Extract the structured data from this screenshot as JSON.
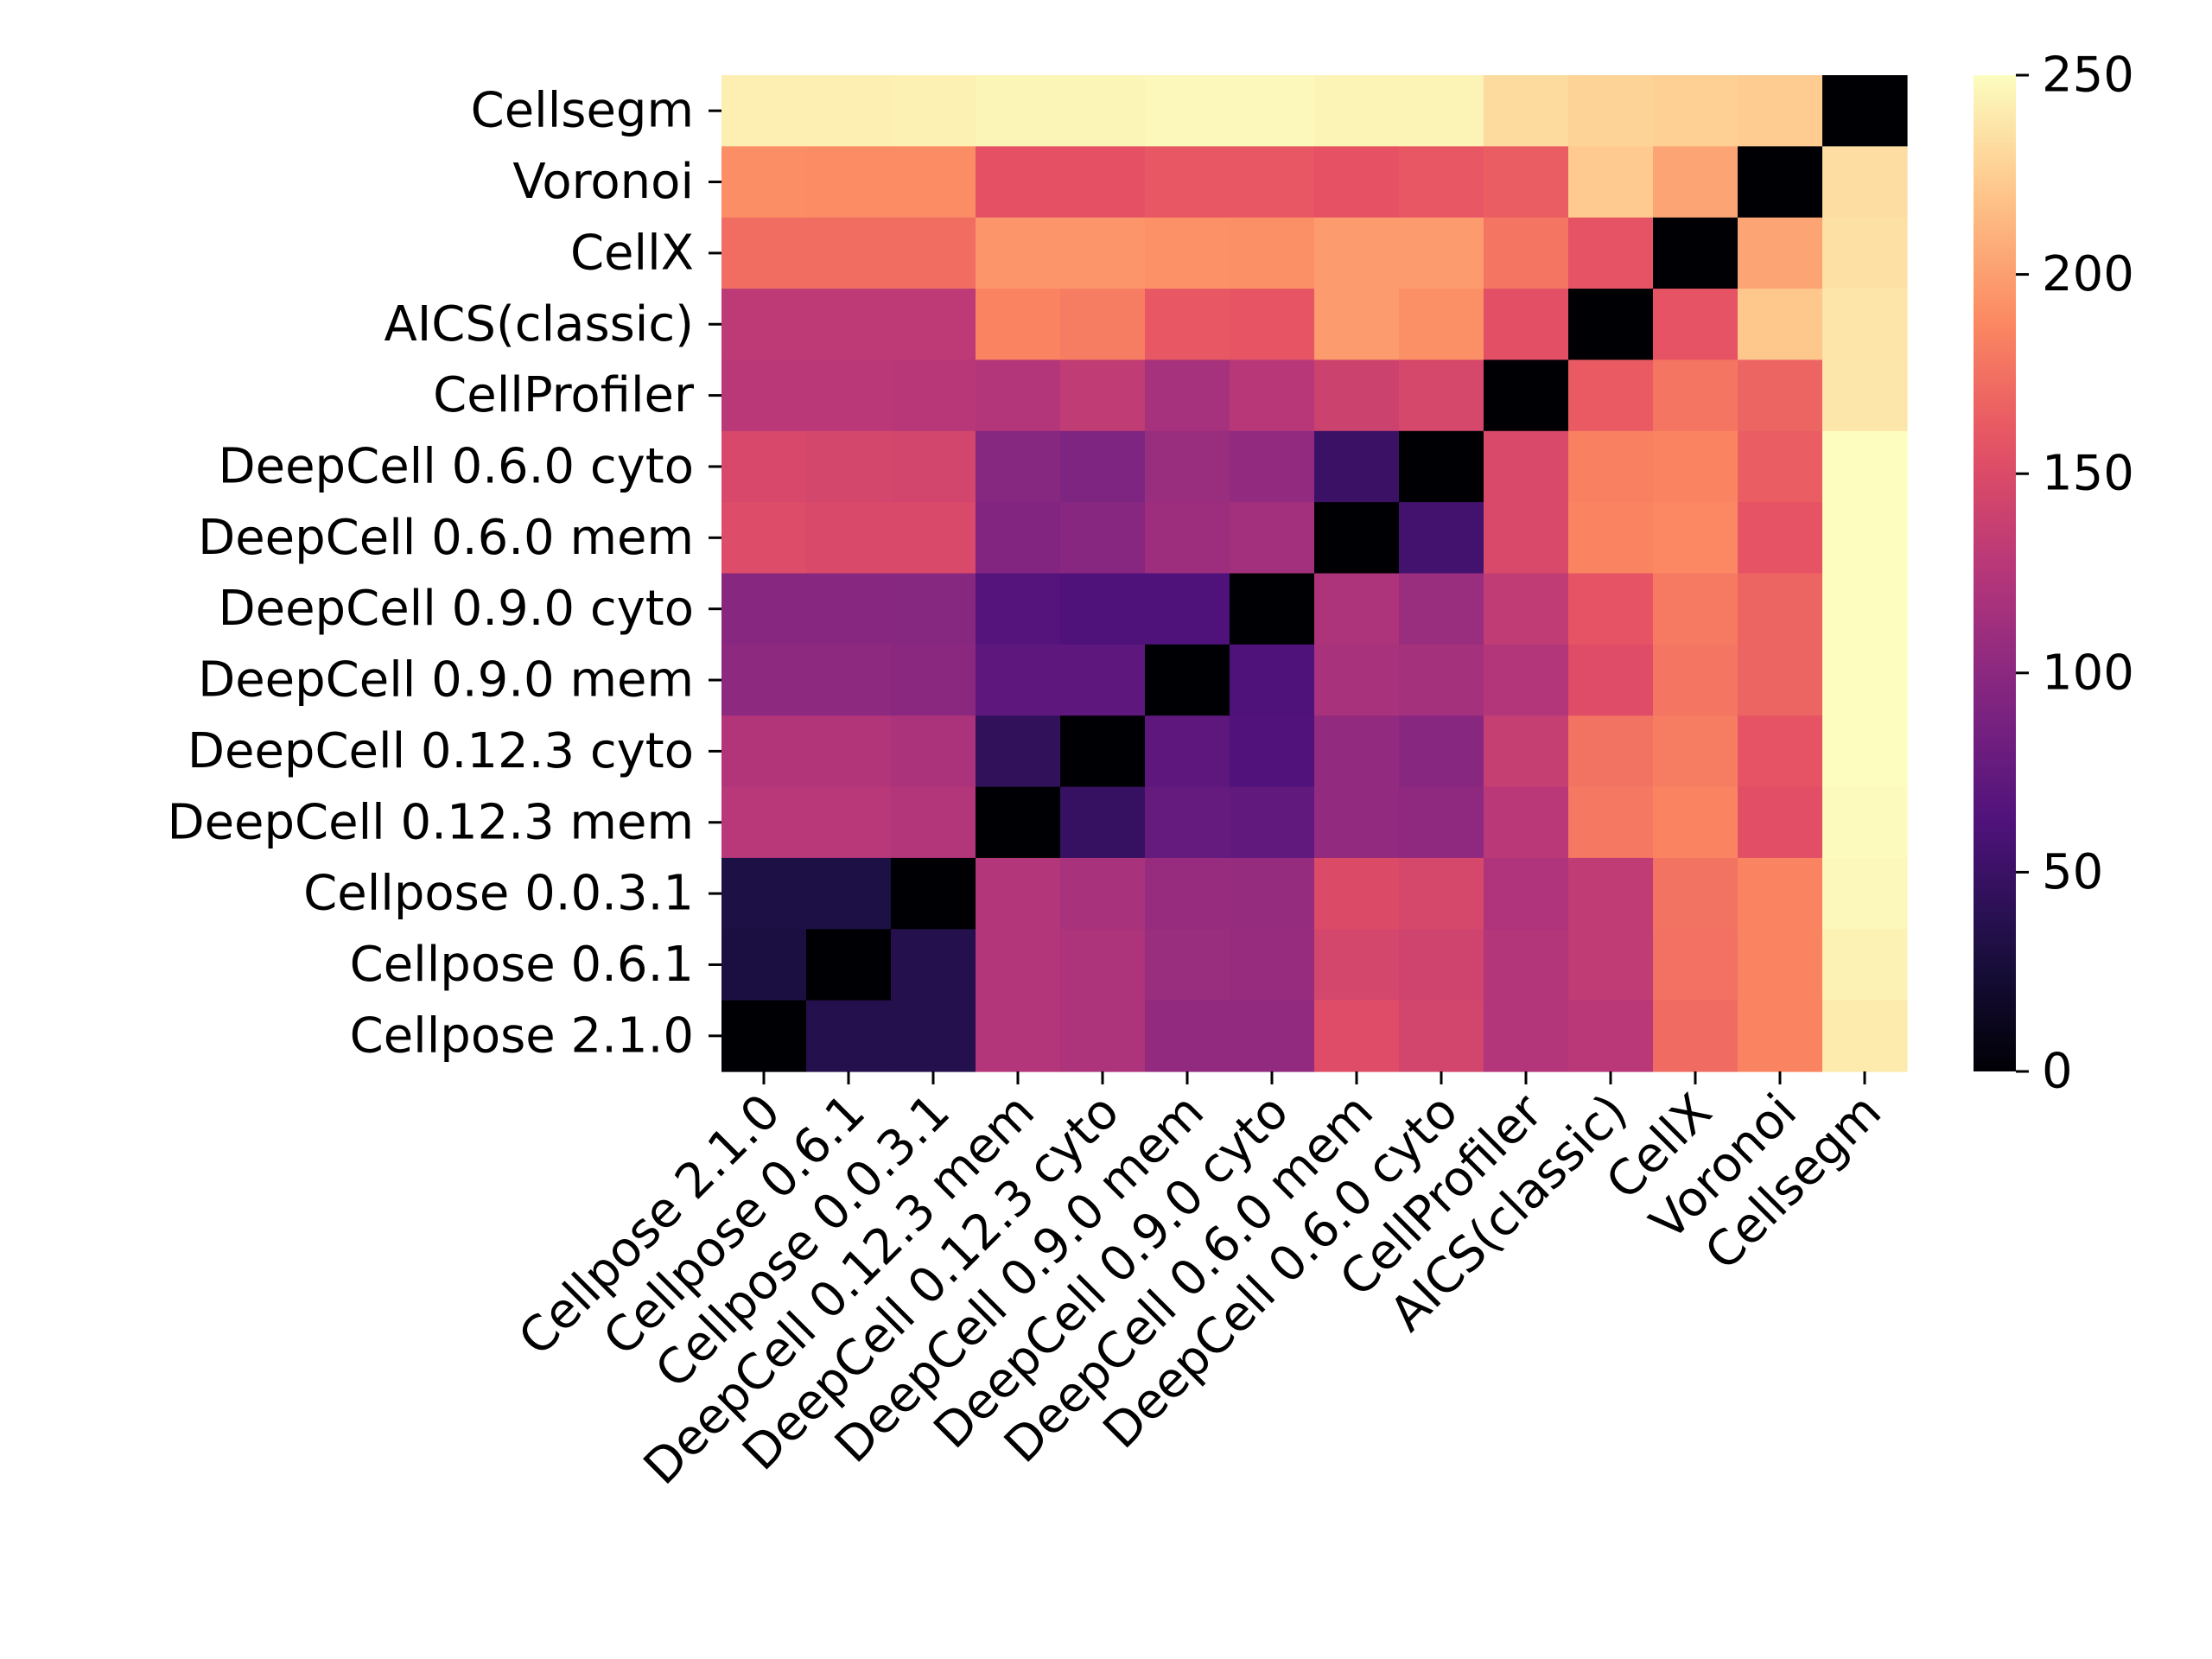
{
  "chart_data": {
    "type": "heatmap",
    "title": "",
    "xlabel": "",
    "ylabel": "",
    "colormap": "magma",
    "colorbar": {
      "min": 0,
      "max": 250,
      "ticks": [
        "0",
        "50",
        "100",
        "150",
        "200",
        "250"
      ]
    },
    "x_labels": [
      "Cellpose 2.1.0",
      "Cellpose 0.6.1",
      "Cellpose 0.0.3.1",
      "DeepCell 0.12.3 mem",
      "DeepCell 0.12.3 cyto",
      "DeepCell 0.9.0 mem",
      "DeepCell 0.9.0 cyto",
      "DeepCell 0.6.0 mem",
      "DeepCell 0.6.0 cyto",
      "CellProfiler",
      "AICS(classic)",
      "CellX",
      "Voronoi",
      "Cellsegm"
    ],
    "y_labels": [
      "Cellsegm",
      "Voronoi",
      "CellX",
      "AICS(classic)",
      "CellProfiler",
      "DeepCell 0.6.0 cyto",
      "DeepCell 0.6.0 mem",
      "DeepCell 0.9.0 cyto",
      "DeepCell 0.9.0 mem",
      "DeepCell 0.12.3 cyto",
      "DeepCell 0.12.3 mem",
      "Cellpose 0.0.3.1",
      "Cellpose 0.6.1",
      "Cellpose 2.1.0"
    ],
    "values": [
      [
        242,
        242,
        243,
        246,
        246,
        247,
        247,
        245,
        245,
        232,
        228,
        226,
        224,
        0
      ],
      [
        191,
        190,
        190,
        156,
        156,
        160,
        160,
        157,
        160,
        164,
        223,
        203,
        0,
        233
      ],
      [
        173,
        173,
        173,
        195,
        195,
        193,
        192,
        198,
        198,
        178,
        158,
        0,
        203,
        235
      ],
      [
        130,
        130,
        130,
        186,
        182,
        161,
        159,
        198,
        192,
        155,
        0,
        158,
        222,
        237
      ],
      [
        128,
        128,
        126,
        124,
        132,
        116,
        126,
        140,
        146,
        0,
        162,
        177,
        168,
        238
      ],
      [
        147,
        145,
        144,
        97,
        92,
        108,
        104,
        50,
        0,
        148,
        184,
        186,
        164,
        250
      ],
      [
        151,
        148,
        148,
        94,
        98,
        110,
        114,
        0,
        55,
        148,
        186,
        188,
        158,
        250
      ],
      [
        98,
        98,
        97,
        66,
        62,
        62,
        0,
        120,
        108,
        132,
        158,
        180,
        168,
        251
      ],
      [
        101,
        101,
        99,
        72,
        72,
        0,
        62,
        117,
        115,
        124,
        152,
        178,
        168,
        251
      ],
      [
        123,
        123,
        119,
        44,
        0,
        72,
        64,
        104,
        98,
        136,
        176,
        182,
        158,
        250
      ],
      [
        127,
        127,
        124,
        0,
        48,
        76,
        74,
        104,
        102,
        128,
        179,
        186,
        154,
        249
      ],
      [
        32,
        32,
        0,
        124,
        118,
        107,
        106,
        150,
        146,
        122,
        132,
        176,
        186,
        247
      ],
      [
        30,
        0,
        36,
        124,
        120,
        108,
        107,
        145,
        142,
        124,
        132,
        175,
        186,
        244
      ],
      [
        0,
        36,
        36,
        124,
        120,
        104,
        104,
        152,
        144,
        124,
        128,
        172,
        186,
        240
      ]
    ]
  }
}
